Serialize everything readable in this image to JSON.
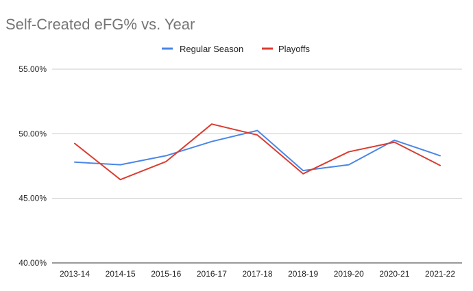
{
  "chart_data": {
    "type": "line",
    "title": "Self-Created eFG% vs. Year",
    "xlabel": "",
    "ylabel": "",
    "categories": [
      "2013-14",
      "2014-15",
      "2015-16",
      "2016-17",
      "2017-18",
      "2018-19",
      "2019-20",
      "2020-21",
      "2021-22"
    ],
    "ylim": [
      40,
      55
    ],
    "yticks": [
      "40.00%",
      "45.00%",
      "50.00%",
      "55.00%"
    ],
    "ytick_values": [
      40,
      45,
      50,
      55
    ],
    "grid": true,
    "legend_position": "top",
    "series": [
      {
        "name": "Regular Season",
        "color": "#4a86e8",
        "values": [
          47.8,
          47.6,
          48.3,
          49.4,
          50.25,
          47.15,
          47.6,
          49.5,
          48.3
        ]
      },
      {
        "name": "Playoffs",
        "color": "#db3c30",
        "values": [
          49.25,
          46.45,
          47.85,
          50.75,
          49.9,
          46.9,
          48.6,
          49.35,
          47.55
        ]
      }
    ]
  }
}
